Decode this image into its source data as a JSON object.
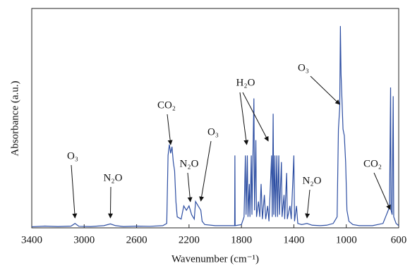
{
  "chart_data": {
    "type": "line",
    "xlabel": "Wavenumber (cm⁻¹)",
    "ylabel": "Absorbance (a.u.)",
    "color": "#2e4fa3",
    "xlim": [
      3400,
      600
    ],
    "ylim": [
      0,
      1
    ],
    "xticks": [
      3400,
      3000,
      2600,
      2200,
      1800,
      1400,
      1000,
      600
    ],
    "x": [
      3400,
      3300,
      3200,
      3100,
      3070,
      3040,
      2950,
      2850,
      2800,
      2760,
      2700,
      2600,
      2500,
      2400,
      2370,
      2360,
      2350,
      2340,
      2330,
      2320,
      2310,
      2300,
      2290,
      2260,
      2240,
      2220,
      2200,
      2180,
      2160,
      2150,
      2130,
      2110,
      2100,
      2080,
      2000,
      1900,
      1852,
      1850,
      1848,
      1800,
      1780,
      1770,
      1765,
      1755,
      1750,
      1740,
      1735,
      1725,
      1720,
      1705,
      1700,
      1690,
      1685,
      1670,
      1660,
      1650,
      1640,
      1625,
      1615,
      1600,
      1590,
      1570,
      1565,
      1558,
      1553,
      1545,
      1540,
      1530,
      1525,
      1515,
      1510,
      1495,
      1490,
      1475,
      1470,
      1455,
      1450,
      1430,
      1420,
      1400,
      1395,
      1380,
      1370,
      1340,
      1300,
      1260,
      1200,
      1150,
      1100,
      1070,
      1060,
      1050,
      1045,
      1040,
      1035,
      1025,
      1015,
      1005,
      995,
      980,
      950,
      900,
      800,
      720,
      700,
      680,
      670,
      662,
      658,
      650,
      642,
      638,
      620,
      600
    ],
    "values": [
      0.005,
      0.008,
      0.006,
      0.008,
      0.02,
      0.007,
      0.006,
      0.01,
      0.018,
      0.01,
      0.006,
      0.008,
      0.007,
      0.01,
      0.02,
      0.33,
      0.38,
      0.34,
      0.37,
      0.3,
      0.26,
      0.12,
      0.05,
      0.04,
      0.1,
      0.08,
      0.1,
      0.06,
      0.04,
      0.12,
      0.1,
      0.08,
      0.03,
      0.015,
      0.01,
      0.01,
      0.01,
      0.33,
      0.01,
      0.015,
      0.05,
      0.33,
      0.06,
      0.33,
      0.05,
      0.2,
      0.05,
      0.33,
      0.06,
      0.59,
      0.08,
      0.4,
      0.05,
      0.12,
      0.05,
      0.2,
      0.04,
      0.15,
      0.04,
      0.1,
      0.03,
      0.33,
      0.05,
      0.52,
      0.06,
      0.33,
      0.05,
      0.33,
      0.05,
      0.33,
      0.06,
      0.3,
      0.05,
      0.15,
      0.04,
      0.25,
      0.04,
      0.1,
      0.04,
      0.33,
      0.03,
      0.1,
      0.02,
      0.015,
      0.02,
      0.012,
      0.01,
      0.012,
      0.02,
      0.05,
      0.45,
      0.55,
      0.92,
      0.7,
      0.62,
      0.45,
      0.42,
      0.3,
      0.08,
      0.03,
      0.015,
      0.01,
      0.01,
      0.02,
      0.05,
      0.08,
      0.1,
      0.64,
      0.08,
      0.06,
      0.6,
      0.05,
      0.02,
      0.01
    ],
    "annotations": [
      {
        "text": "O₃",
        "targets": [
          3070
        ]
      },
      {
        "text": "N₂O",
        "targets": [
          2800
        ]
      },
      {
        "text": "CO₂",
        "targets": [
          2340
        ]
      },
      {
        "text": "N₂O",
        "targets": [
          2190
        ]
      },
      {
        "text": "O₃",
        "targets": [
          2110
        ]
      },
      {
        "text": "H₂O",
        "targets": [
          1760,
          1595
        ]
      },
      {
        "text": "O₃",
        "targets": [
          1050
        ]
      },
      {
        "text": "N₂O",
        "targets": [
          1300
        ]
      },
      {
        "text": "CO₂",
        "targets": [
          665
        ]
      }
    ]
  }
}
